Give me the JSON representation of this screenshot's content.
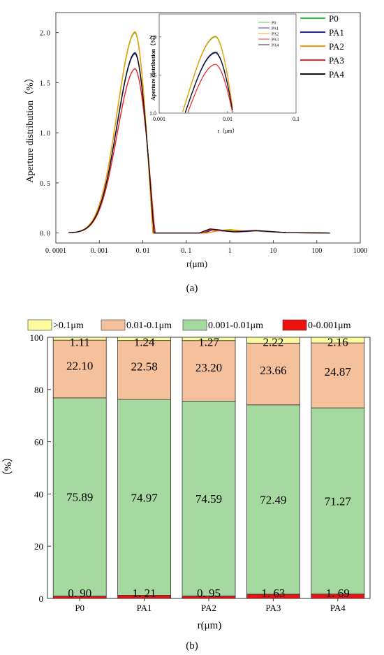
{
  "figure": {
    "caption_a": "(a)",
    "caption_b": "(b)"
  },
  "chart_data": [
    {
      "type": "line",
      "title": "",
      "xlabel": "r(μm)",
      "ylabel": "Aperture distribution（%）",
      "xscale": "log",
      "xlim": [
        0.0001,
        1000
      ],
      "ylim": [
        -0.1,
        2.2
      ],
      "x_ticks": [
        0.0001,
        0.001,
        0.01,
        0.1,
        1,
        10,
        100,
        1000
      ],
      "x_tick_labels": [
        "0. 0001",
        "0. 001",
        "0. 01",
        "0. 1",
        "1",
        "10",
        "100",
        "1000"
      ],
      "y_ticks": [
        0,
        0.5,
        1.0,
        1.5,
        2.0
      ],
      "y_tick_labels": [
        "0. 0",
        "0. 5",
        "1. 0",
        "1. 5",
        "2. 0"
      ],
      "legend_position": "top-right",
      "grid": false,
      "series": [
        {
          "name": "P0",
          "color": "#33cc33",
          "peak_r": 0.0068,
          "peak": 2.0,
          "cutoff_r": 0.017,
          "tail": [
            [
              0.3,
              0.0
            ],
            [
              0.5,
              0.02
            ],
            [
              1,
              0.03
            ],
            [
              2,
              0.015
            ],
            [
              5,
              0.02
            ],
            [
              20,
              0.003
            ],
            [
              200,
              0.0
            ]
          ]
        },
        {
          "name": "PA1",
          "color": "#2222cc",
          "peak_r": 0.0068,
          "peak": 1.79,
          "cutoff_r": 0.018,
          "tail": [
            [
              0.25,
              0.0
            ],
            [
              0.4,
              0.03
            ],
            [
              0.7,
              0.02
            ],
            [
              1.5,
              0.01
            ],
            [
              4,
              0.02
            ],
            [
              20,
              0.003
            ],
            [
              200,
              0.0
            ]
          ]
        },
        {
          "name": "PA2",
          "color": "#ff9900",
          "peak_r": 0.0068,
          "peak": 2.01,
          "cutoff_r": 0.017,
          "tail": [
            [
              0.3,
              0.0
            ],
            [
              0.5,
              0.02
            ],
            [
              1,
              0.035
            ],
            [
              2,
              0.02
            ],
            [
              5,
              0.02
            ],
            [
              20,
              0.003
            ],
            [
              200,
              0.0
            ]
          ]
        },
        {
          "name": "PA3",
          "color": "#ee2222",
          "peak_r": 0.0068,
          "peak": 1.64,
          "cutoff_r": 0.019,
          "tail": [
            [
              0.22,
              0.0
            ],
            [
              0.35,
              0.03
            ],
            [
              0.6,
              0.025
            ],
            [
              1.2,
              0.015
            ],
            [
              4,
              0.025
            ],
            [
              20,
              0.003
            ],
            [
              200,
              0.0
            ]
          ]
        },
        {
          "name": "PA4",
          "color": "#111111",
          "peak_r": 0.0068,
          "peak": 1.8,
          "cutoff_r": 0.018,
          "tail": [
            [
              0.2,
              0.0
            ],
            [
              0.35,
              0.04
            ],
            [
              0.6,
              0.03
            ],
            [
              1.2,
              0.01
            ],
            [
              4,
              0.025
            ],
            [
              20,
              0.003
            ],
            [
              200,
              0.0
            ]
          ]
        }
      ],
      "inset": {
        "ylabel": "Aperture distribution（%）",
        "xlabel": "r（μm）",
        "xlim": [
          0.001,
          0.1
        ],
        "ylim": [
          1.0,
          2.3
        ],
        "x_ticks": [
          0.001,
          0.01,
          0.1
        ],
        "x_tick_labels": [
          "0.001",
          "0.01",
          "0.1"
        ],
        "y_ticks": [
          1.0,
          1.5,
          2.0
        ],
        "y_tick_labels": [
          "1.0",
          "1.5",
          "2.0"
        ],
        "legend": [
          "P0",
          "PA1",
          "PA2",
          "PA3",
          "PA4"
        ]
      }
    },
    {
      "type": "bar",
      "stacked": true,
      "title": "",
      "xlabel": "r(μm)",
      "ylabel": "（%）",
      "ylim": [
        0,
        100
      ],
      "y_ticks": [
        0,
        20,
        40,
        60,
        80,
        100
      ],
      "legend_position": "top",
      "categories": [
        "P0",
        "PA1",
        "PA2",
        "PA3",
        "PA4"
      ],
      "series": [
        {
          "name": "0-0.001μm",
          "color": "#ee1111",
          "values": [
            0.9,
            1.21,
            0.95,
            1.63,
            1.69
          ],
          "labels": [
            "0. 90",
            "1. 21",
            "0. 95",
            "1. 63",
            "1. 69"
          ]
        },
        {
          "name": "0.001-0.01μm",
          "color": "#a6d9a0",
          "values": [
            75.89,
            74.97,
            74.59,
            72.49,
            71.27
          ],
          "labels": [
            "75.89",
            "74.97",
            "74.59",
            "72.49",
            "71.27"
          ]
        },
        {
          "name": "0.01-0.1μm",
          "color": "#f5c09c",
          "values": [
            22.1,
            22.58,
            23.2,
            23.66,
            24.87
          ],
          "labels": [
            "22.10",
            "22.58",
            "23.20",
            "23.66",
            "24.87"
          ]
        },
        {
          "name": ">0.1μm",
          "color": "#fbfba0",
          "values": [
            1.11,
            1.24,
            1.27,
            2.22,
            2.16
          ],
          "labels": [
            "1.11",
            "1.24",
            "1.27",
            "2.22",
            "2.16"
          ]
        }
      ],
      "legend_order": [
        ">0.1μm",
        "0.01-0.1μm",
        "0.001-0.01μm",
        "0-0.001μm"
      ]
    }
  ]
}
